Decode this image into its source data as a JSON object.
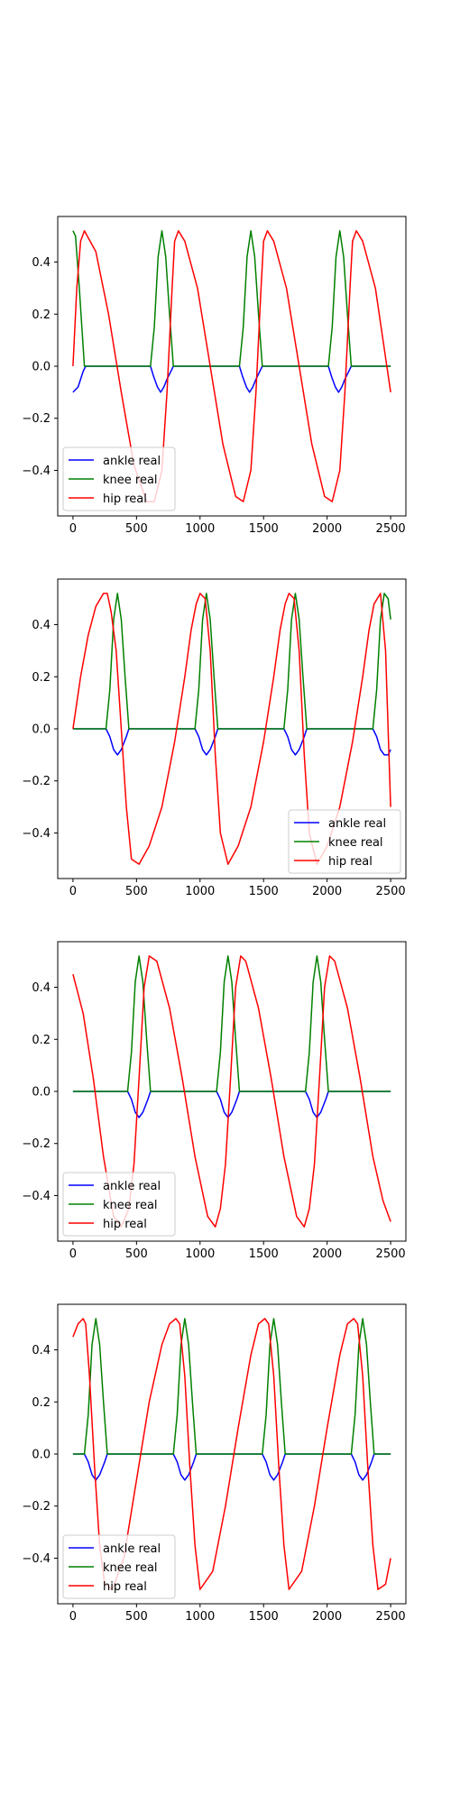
{
  "figure": {
    "panel_count": 4
  },
  "colors": {
    "ankle": "#0000ff",
    "knee": "#008000",
    "hip": "#ff0000",
    "axes": "#000000",
    "background": "#ffffff"
  },
  "chart_data": [
    {
      "type": "line",
      "title": "",
      "xlabel": "",
      "ylabel": "",
      "xlim": [
        -120,
        2620
      ],
      "ylim": [
        -0.575,
        0.575
      ],
      "xticks": [
        0,
        500,
        1000,
        1500,
        2000,
        2500
      ],
      "xtick_labels": [
        "0",
        "500",
        "1000",
        "1500",
        "2000",
        "2500"
      ],
      "yticks": [
        -0.4,
        -0.2,
        0.0,
        0.2,
        0.4
      ],
      "ytick_labels": [
        "−0.4",
        "−0.2",
        "0.0",
        "0.2",
        "0.4"
      ],
      "grid": false,
      "legend": {
        "position": "lower-left",
        "entries": [
          "ankle real",
          "knee real",
          "hip real"
        ]
      },
      "series": [
        {
          "name": "ankle real",
          "color": "#0000ff",
          "x": [
            0,
            40,
            80,
            100,
            610,
            635,
            665,
            690,
            715,
            740,
            770,
            790,
            1310,
            1335,
            1365,
            1390,
            1415,
            1440,
            1470,
            1490,
            2010,
            2035,
            2065,
            2090,
            2115,
            2140,
            2170,
            2190,
            2500
          ],
          "y": [
            -0.1,
            -0.08,
            -0.02,
            0,
            0,
            -0.04,
            -0.08,
            -0.1,
            -0.08,
            -0.05,
            -0.02,
            0,
            0,
            -0.04,
            -0.08,
            -0.1,
            -0.08,
            -0.05,
            -0.02,
            0,
            0,
            -0.04,
            -0.08,
            -0.1,
            -0.08,
            -0.05,
            -0.02,
            0,
            0
          ]
        },
        {
          "name": "knee real",
          "color": "#008000",
          "x": [
            0,
            20,
            50,
            90,
            610,
            640,
            670,
            700,
            730,
            760,
            790,
            1310,
            1340,
            1370,
            1400,
            1430,
            1460,
            1490,
            2010,
            2040,
            2070,
            2100,
            2130,
            2160,
            2190,
            2500
          ],
          "y": [
            0.52,
            0.5,
            0.3,
            0,
            0,
            0.15,
            0.42,
            0.52,
            0.42,
            0.2,
            0,
            0,
            0.15,
            0.42,
            0.52,
            0.42,
            0.2,
            0,
            0,
            0.15,
            0.42,
            0.52,
            0.42,
            0.2,
            0,
            0
          ]
        },
        {
          "name": "hip real",
          "color": "#ff0000",
          "x": [
            0,
            30,
            60,
            90,
            180,
            280,
            380,
            480,
            580,
            640,
            700,
            740,
            780,
            800,
            830,
            880,
            980,
            1080,
            1180,
            1280,
            1340,
            1400,
            1440,
            1480,
            1500,
            1530,
            1580,
            1680,
            1780,
            1880,
            1980,
            2040,
            2100,
            2140,
            2180,
            2200,
            2230,
            2280,
            2380,
            2500
          ],
          "y": [
            0.0,
            0.3,
            0.48,
            0.52,
            0.44,
            0.2,
            -0.1,
            -0.38,
            -0.52,
            -0.52,
            -0.4,
            -0.1,
            0.3,
            0.48,
            0.52,
            0.48,
            0.3,
            0.0,
            -0.3,
            -0.5,
            -0.52,
            -0.4,
            -0.1,
            0.3,
            0.48,
            0.52,
            0.48,
            0.3,
            0.0,
            -0.3,
            -0.5,
            -0.52,
            -0.4,
            -0.1,
            0.3,
            0.48,
            0.52,
            0.48,
            0.3,
            -0.1
          ]
        }
      ]
    },
    {
      "type": "line",
      "title": "",
      "xlabel": "",
      "ylabel": "",
      "xlim": [
        -120,
        2620
      ],
      "ylim": [
        -0.575,
        0.575
      ],
      "xticks": [
        0,
        500,
        1000,
        1500,
        2000,
        2500
      ],
      "xtick_labels": [
        "0",
        "500",
        "1000",
        "1500",
        "2000",
        "2500"
      ],
      "yticks": [
        -0.4,
        -0.2,
        0.0,
        0.2,
        0.4
      ],
      "ytick_labels": [
        "−0.4",
        "−0.2",
        "0.0",
        "0.2",
        "0.4"
      ],
      "grid": false,
      "legend": {
        "position": "lower-right",
        "entries": [
          "ankle real",
          "knee real",
          "hip real"
        ]
      },
      "series": [
        {
          "name": "ankle real",
          "color": "#0000ff",
          "x": [
            0,
            260,
            290,
            320,
            350,
            380,
            420,
            440,
            960,
            990,
            1020,
            1050,
            1080,
            1120,
            1140,
            1660,
            1690,
            1720,
            1750,
            1780,
            1820,
            1840,
            2360,
            2390,
            2420,
            2450,
            2480,
            2500
          ],
          "y": [
            0,
            0,
            -0.03,
            -0.08,
            -0.1,
            -0.08,
            -0.03,
            0,
            0,
            -0.03,
            -0.08,
            -0.1,
            -0.08,
            -0.03,
            0,
            0,
            -0.03,
            -0.08,
            -0.1,
            -0.08,
            -0.03,
            0,
            0,
            -0.03,
            -0.08,
            -0.1,
            -0.1,
            -0.08
          ]
        },
        {
          "name": "knee real",
          "color": "#008000",
          "x": [
            0,
            260,
            290,
            320,
            350,
            380,
            410,
            440,
            960,
            990,
            1020,
            1050,
            1080,
            1110,
            1140,
            1660,
            1690,
            1720,
            1750,
            1780,
            1810,
            1840,
            2360,
            2390,
            2420,
            2450,
            2480,
            2500
          ],
          "y": [
            0,
            0,
            0.15,
            0.42,
            0.52,
            0.42,
            0.2,
            0,
            0,
            0.15,
            0.42,
            0.52,
            0.42,
            0.2,
            0,
            0,
            0.15,
            0.42,
            0.52,
            0.42,
            0.2,
            0,
            0,
            0.15,
            0.42,
            0.52,
            0.5,
            0.42
          ]
        },
        {
          "name": "hip real",
          "color": "#ff0000",
          "x": [
            0,
            60,
            120,
            180,
            240,
            270,
            300,
            340,
            380,
            420,
            460,
            520,
            600,
            700,
            800,
            880,
            930,
            970,
            1000,
            1040,
            1080,
            1120,
            1160,
            1220,
            1300,
            1400,
            1500,
            1580,
            1630,
            1670,
            1700,
            1740,
            1780,
            1820,
            1860,
            1920,
            2000,
            2100,
            2200,
            2280,
            2330,
            2370,
            2420,
            2460,
            2500
          ],
          "y": [
            0.0,
            0.2,
            0.36,
            0.47,
            0.52,
            0.52,
            0.45,
            0.3,
            0.0,
            -0.3,
            -0.5,
            -0.52,
            -0.45,
            -0.3,
            -0.05,
            0.2,
            0.38,
            0.48,
            0.52,
            0.5,
            0.3,
            -0.1,
            -0.4,
            -0.52,
            -0.45,
            -0.3,
            -0.05,
            0.2,
            0.38,
            0.48,
            0.52,
            0.5,
            0.3,
            -0.1,
            -0.4,
            -0.52,
            -0.45,
            -0.3,
            -0.05,
            0.2,
            0.38,
            0.48,
            0.52,
            0.3,
            -0.3
          ]
        }
      ]
    },
    {
      "type": "line",
      "title": "",
      "xlabel": "",
      "ylabel": "",
      "xlim": [
        -120,
        2620
      ],
      "ylim": [
        -0.575,
        0.575
      ],
      "xticks": [
        0,
        500,
        1000,
        1500,
        2000,
        2500
      ],
      "xtick_labels": [
        "0",
        "500",
        "1000",
        "1500",
        "2000",
        "2500"
      ],
      "yticks": [
        -0.4,
        -0.2,
        0.0,
        0.2,
        0.4
      ],
      "ytick_labels": [
        "−0.4",
        "−0.2",
        "0.0",
        "0.2",
        "0.4"
      ],
      "grid": false,
      "legend": {
        "position": "lower-left",
        "entries": [
          "ankle real",
          "knee real",
          "hip real"
        ]
      },
      "series": [
        {
          "name": "ankle real",
          "color": "#0000ff",
          "x": [
            0,
            430,
            460,
            490,
            520,
            550,
            590,
            610,
            1130,
            1160,
            1190,
            1220,
            1250,
            1290,
            1310,
            1830,
            1860,
            1890,
            1920,
            1950,
            1990,
            2010,
            2500
          ],
          "y": [
            0,
            0,
            -0.03,
            -0.08,
            -0.1,
            -0.08,
            -0.03,
            0,
            0,
            -0.03,
            -0.08,
            -0.1,
            -0.08,
            -0.03,
            0,
            0,
            -0.03,
            -0.08,
            -0.1,
            -0.08,
            -0.03,
            0,
            0
          ]
        },
        {
          "name": "knee real",
          "color": "#008000",
          "x": [
            0,
            430,
            460,
            490,
            520,
            550,
            580,
            610,
            1130,
            1160,
            1190,
            1220,
            1250,
            1280,
            1310,
            1830,
            1860,
            1890,
            1920,
            1950,
            1980,
            2010,
            2500
          ],
          "y": [
            0,
            0,
            0.15,
            0.42,
            0.52,
            0.42,
            0.2,
            0,
            0,
            0.15,
            0.42,
            0.52,
            0.42,
            0.2,
            0,
            0,
            0.15,
            0.42,
            0.52,
            0.42,
            0.2,
            0,
            0
          ]
        },
        {
          "name": "hip real",
          "color": "#ff0000",
          "x": [
            0,
            80,
            160,
            240,
            320,
            380,
            440,
            480,
            520,
            560,
            600,
            660,
            760,
            860,
            960,
            1060,
            1120,
            1160,
            1200,
            1240,
            1280,
            1320,
            1360,
            1460,
            1560,
            1660,
            1760,
            1820,
            1860,
            1900,
            1940,
            1980,
            2020,
            2060,
            2160,
            2260,
            2360,
            2440,
            2500
          ],
          "y": [
            0.45,
            0.3,
            0.05,
            -0.25,
            -0.48,
            -0.52,
            -0.45,
            -0.28,
            0.05,
            0.4,
            0.52,
            0.5,
            0.32,
            0.05,
            -0.25,
            -0.48,
            -0.52,
            -0.45,
            -0.28,
            0.05,
            0.4,
            0.52,
            0.5,
            0.32,
            0.05,
            -0.25,
            -0.48,
            -0.52,
            -0.45,
            -0.28,
            0.05,
            0.4,
            0.52,
            0.5,
            0.32,
            0.05,
            -0.25,
            -0.42,
            -0.5
          ]
        }
      ]
    },
    {
      "type": "line",
      "title": "",
      "xlabel": "",
      "ylabel": "",
      "xlim": [
        -120,
        2620
      ],
      "ylim": [
        -0.575,
        0.575
      ],
      "xticks": [
        0,
        500,
        1000,
        1500,
        2000,
        2500
      ],
      "xtick_labels": [
        "0",
        "500",
        "1000",
        "1500",
        "2000",
        "2500"
      ],
      "yticks": [
        -0.4,
        -0.2,
        0.0,
        0.2,
        0.4
      ],
      "ytick_labels": [
        "−0.4",
        "−0.2",
        "0.0",
        "0.2",
        "0.4"
      ],
      "grid": false,
      "legend": {
        "position": "lower-left",
        "entries": [
          "ankle real",
          "knee real",
          "hip real"
        ]
      },
      "series": [
        {
          "name": "ankle real",
          "color": "#0000ff",
          "x": [
            0,
            90,
            120,
            150,
            180,
            210,
            250,
            270,
            790,
            820,
            850,
            880,
            910,
            950,
            970,
            1490,
            1520,
            1550,
            1580,
            1610,
            1650,
            1670,
            2190,
            2220,
            2250,
            2280,
            2310,
            2350,
            2370,
            2500
          ],
          "y": [
            0,
            0,
            -0.03,
            -0.08,
            -0.1,
            -0.08,
            -0.03,
            0,
            0,
            -0.03,
            -0.08,
            -0.1,
            -0.08,
            -0.03,
            0,
            0,
            -0.03,
            -0.08,
            -0.1,
            -0.08,
            -0.03,
            0,
            0,
            -0.03,
            -0.08,
            -0.1,
            -0.08,
            -0.03,
            0,
            0
          ]
        },
        {
          "name": "knee real",
          "color": "#008000",
          "x": [
            0,
            90,
            120,
            150,
            180,
            210,
            240,
            270,
            790,
            820,
            850,
            880,
            910,
            940,
            970,
            1490,
            1520,
            1550,
            1580,
            1610,
            1640,
            1670,
            2190,
            2220,
            2250,
            2280,
            2310,
            2340,
            2370,
            2500
          ],
          "y": [
            0,
            0,
            0.15,
            0.42,
            0.52,
            0.42,
            0.2,
            0,
            0,
            0.15,
            0.42,
            0.52,
            0.42,
            0.2,
            0,
            0,
            0.15,
            0.42,
            0.52,
            0.42,
            0.2,
            0,
            0,
            0.15,
            0.42,
            0.52,
            0.42,
            0.2,
            0,
            0
          ]
        },
        {
          "name": "hip real",
          "color": "#ff0000",
          "x": [
            0,
            40,
            80,
            100,
            130,
            170,
            210,
            250,
            310,
            400,
            500,
            600,
            700,
            760,
            810,
            840,
            880,
            920,
            960,
            1000,
            1100,
            1200,
            1300,
            1400,
            1460,
            1510,
            1540,
            1580,
            1620,
            1660,
            1700,
            1800,
            1900,
            2000,
            2100,
            2160,
            2210,
            2240,
            2280,
            2320,
            2360,
            2400,
            2460,
            2500
          ],
          "y": [
            0.45,
            0.5,
            0.52,
            0.5,
            0.3,
            -0.05,
            -0.35,
            -0.5,
            -0.52,
            -0.4,
            -0.1,
            0.2,
            0.42,
            0.5,
            0.52,
            0.5,
            0.3,
            -0.05,
            -0.35,
            -0.52,
            -0.45,
            -0.2,
            0.1,
            0.38,
            0.5,
            0.52,
            0.5,
            0.3,
            -0.05,
            -0.35,
            -0.52,
            -0.45,
            -0.2,
            0.1,
            0.38,
            0.5,
            0.52,
            0.5,
            0.3,
            -0.05,
            -0.35,
            -0.52,
            -0.5,
            -0.4
          ]
        }
      ]
    }
  ]
}
